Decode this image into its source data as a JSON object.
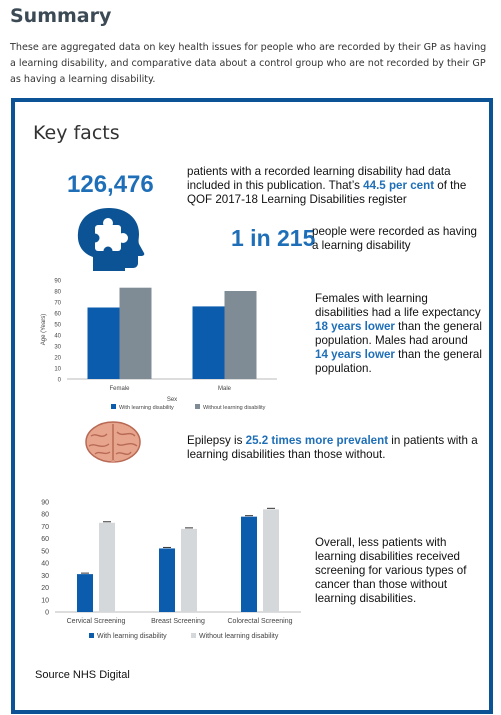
{
  "summary": {
    "title": "Summary",
    "intro": "These are aggregated data on key health issues for people who are recorded by their GP as having a learning disability, and comparative data about a control group who are not recorded by their GP as having a learning disability."
  },
  "key_facts": {
    "title": "Key facts",
    "big_number": "126,476",
    "fact1_pre": "patients with a recorded learning disability had data included in this publication.  That’s ",
    "fact1_hl": "44.5 per cent",
    "fact1_post": " of the QOF 2017-18 Learning Disabilities register",
    "ratio": "1 in 215",
    "fact2": "people were recorded as having a learning disability",
    "fact3_a": "Females with learning disabilities had a life expectancy ",
    "fact3_hl1": "18 years lower",
    "fact3_b": " than the general population. Males had around ",
    "fact3_hl2": "14 years lower",
    "fact3_c": " than the general population.",
    "fact4_a": "Epilepsy is ",
    "fact4_hl": "25.2 times more prevalent",
    "fact4_b": " in patients with a learning disabilities than those without.",
    "fact5": "Overall, less patients with learning disabilities received screening for various types of cancer than those without learning disabilities.",
    "source": "Source NHS Digital"
  },
  "colors": {
    "panel_border": "#0b5394",
    "accent_blue": "#1f6fb8",
    "bar_blue": "#0b5cad",
    "bar_grey": "#7f8c96",
    "bar_light": "#d5d8da"
  },
  "icons": [
    "head-puzzle-icon",
    "brain-icon"
  ],
  "chart_data": [
    {
      "type": "bar",
      "ylabel": "Age (Years)",
      "xlabel": "Sex",
      "ylim": [
        0,
        90
      ],
      "yticks": [
        "90",
        "80",
        "70",
        "60",
        "50",
        "40",
        "30",
        "20",
        "10",
        "0"
      ],
      "categories": [
        "Female",
        "Male"
      ],
      "series": [
        {
          "name": "With learning disability",
          "values": [
            65,
            66
          ]
        },
        {
          "name": "Without learning disability",
          "values": [
            83,
            80
          ]
        }
      ],
      "legend_position": "bottom",
      "grid": false
    },
    {
      "type": "bar",
      "ylim": [
        0,
        90
      ],
      "yticks": [
        "90",
        "80",
        "70",
        "60",
        "50",
        "40",
        "30",
        "20",
        "10",
        "0"
      ],
      "categories": [
        "Cervical Screening",
        "Breast Screening",
        "Colorectal Screening"
      ],
      "series": [
        {
          "name": "With learning disability",
          "values": [
            31,
            52,
            78
          ]
        },
        {
          "name": "Without learning disability",
          "values": [
            73,
            68,
            84
          ]
        }
      ],
      "legend_position": "bottom",
      "grid": false,
      "error_bars": true
    }
  ]
}
